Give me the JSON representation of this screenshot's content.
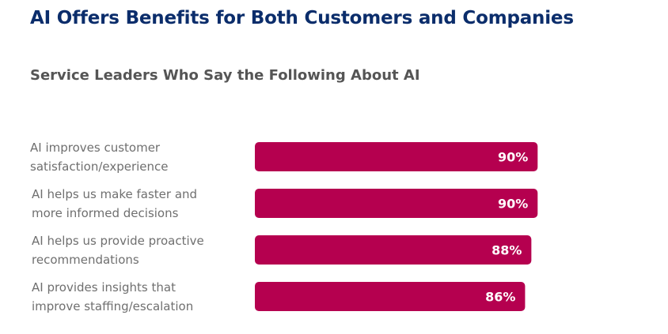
{
  "title": "AI Offers Benefits for Both Customers and Companies",
  "colors": {
    "title": "#0b2d6b",
    "bar": "#b5004f",
    "label": "#6f6f6f",
    "subtitle": "#555555"
  },
  "chart_data": {
    "type": "bar",
    "orientation": "horizontal",
    "title": "Service Leaders Who Say the Following About AI",
    "categories": [
      [
        "AI improves customer",
        "satisfaction/experience"
      ],
      [
        "AI helps us make faster and",
        "more informed decisions"
      ],
      [
        "AI helps us provide proactive",
        "recommendations"
      ],
      [
        "AI provides insights that",
        "improve staffing/escalation"
      ]
    ],
    "values": [
      90,
      90,
      88,
      86
    ],
    "value_labels": [
      "90%",
      "90%",
      "88%",
      "86%"
    ],
    "unit": "%",
    "grid": false,
    "legend": "none"
  }
}
